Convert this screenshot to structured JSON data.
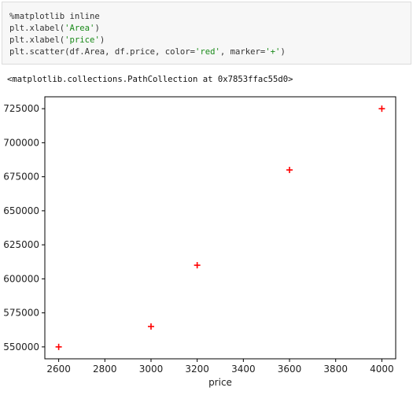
{
  "cell": {
    "lines": [
      {
        "parts": [
          {
            "text": "%matplotlib inline",
            "cls": ""
          }
        ]
      },
      {
        "parts": [
          {
            "text": "plt.xlabel(",
            "cls": ""
          },
          {
            "text": "'Area'",
            "cls": "str"
          },
          {
            "text": ")",
            "cls": ""
          }
        ]
      },
      {
        "parts": [
          {
            "text": "plt.xlabel(",
            "cls": ""
          },
          {
            "text": "'price'",
            "cls": "str"
          },
          {
            "text": ")",
            "cls": ""
          }
        ]
      },
      {
        "parts": [
          {
            "text": "plt.scatter(df.Area, df.price, color=",
            "cls": ""
          },
          {
            "text": "'red'",
            "cls": "str"
          },
          {
            "text": ", marker=",
            "cls": ""
          },
          {
            "text": "'+'",
            "cls": "str"
          },
          {
            "text": ")",
            "cls": ""
          }
        ]
      }
    ]
  },
  "output": {
    "text": "<matplotlib.collections.PathCollection at 0x7853ffac55d0>"
  },
  "chart_data": {
    "type": "scatter",
    "x": [
      2600,
      3000,
      3200,
      3600,
      4000
    ],
    "y": [
      550000,
      565000,
      610000,
      680000,
      725000
    ],
    "marker": "+",
    "color": "#ff0000",
    "xlabel": "price",
    "ylabel": "",
    "xlim": [
      2540,
      4060
    ],
    "ylim": [
      541250,
      733750
    ],
    "xticks": [
      2600,
      2800,
      3000,
      3200,
      3400,
      3600,
      3800,
      4000
    ],
    "yticks": [
      550000,
      575000,
      600000,
      625000,
      650000,
      675000,
      700000,
      725000
    ],
    "grid": false
  }
}
